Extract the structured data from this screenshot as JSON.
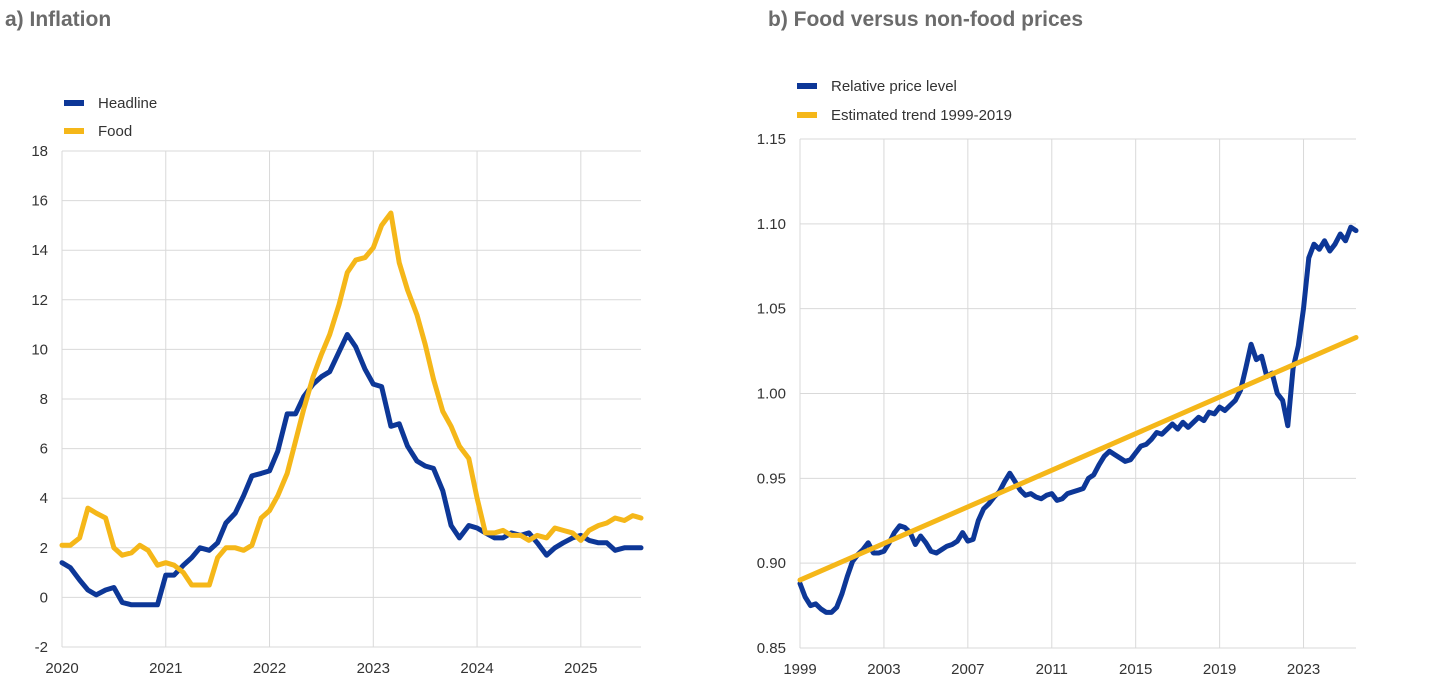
{
  "chart_data": [
    {
      "type": "line",
      "title": "a) Inflation",
      "xlabel": "",
      "ylabel": "",
      "x_ticks": [
        "2020",
        "2021",
        "2022",
        "2023",
        "2024",
        "2025"
      ],
      "x_range": [
        2020.0,
        2025.58
      ],
      "y_ticks": [
        "18",
        "16",
        "14",
        "12",
        "10",
        "8",
        "6",
        "4",
        "2",
        "0",
        "-2"
      ],
      "ylim": [
        -2,
        18
      ],
      "grid": true,
      "legend_position": "top-left",
      "series": [
        {
          "name": "Headline",
          "color": "#0d3797",
          "x": [
            2020.0,
            2020.08,
            2020.17,
            2020.25,
            2020.33,
            2020.42,
            2020.5,
            2020.58,
            2020.67,
            2020.75,
            2020.83,
            2020.92,
            2021.0,
            2021.08,
            2021.17,
            2021.25,
            2021.33,
            2021.42,
            2021.5,
            2021.58,
            2021.67,
            2021.75,
            2021.83,
            2021.92,
            2022.0,
            2022.08,
            2022.17,
            2022.25,
            2022.33,
            2022.42,
            2022.5,
            2022.58,
            2022.67,
            2022.75,
            2022.83,
            2022.92,
            2023.0,
            2023.08,
            2023.17,
            2023.25,
            2023.33,
            2023.42,
            2023.5,
            2023.58,
            2023.67,
            2023.75,
            2023.83,
            2023.92,
            2024.0,
            2024.08,
            2024.17,
            2024.25,
            2024.33,
            2024.42,
            2024.5,
            2024.58,
            2024.67,
            2024.75,
            2024.83,
            2024.92,
            2025.0,
            2025.08,
            2025.17,
            2025.25,
            2025.33,
            2025.42,
            2025.5,
            2025.58
          ],
          "values": [
            1.4,
            1.2,
            0.7,
            0.3,
            0.1,
            0.3,
            0.4,
            -0.2,
            -0.3,
            -0.3,
            -0.3,
            -0.3,
            0.9,
            0.9,
            1.3,
            1.6,
            2.0,
            1.9,
            2.2,
            3.0,
            3.4,
            4.1,
            4.9,
            5.0,
            5.1,
            5.9,
            7.4,
            7.4,
            8.1,
            8.6,
            8.9,
            9.1,
            9.9,
            10.6,
            10.1,
            9.2,
            8.6,
            8.5,
            6.9,
            7.0,
            6.1,
            5.5,
            5.3,
            5.2,
            4.3,
            2.9,
            2.4,
            2.9,
            2.8,
            2.6,
            2.4,
            2.4,
            2.6,
            2.5,
            2.6,
            2.2,
            1.7,
            2.0,
            2.2,
            2.4,
            2.5,
            2.3,
            2.2,
            2.2,
            1.9,
            2.0,
            2.0,
            2.0
          ]
        },
        {
          "name": "Food",
          "color": "#f5b719",
          "x": [
            2020.0,
            2020.08,
            2020.17,
            2020.25,
            2020.33,
            2020.42,
            2020.5,
            2020.58,
            2020.67,
            2020.75,
            2020.83,
            2020.92,
            2021.0,
            2021.08,
            2021.17,
            2021.25,
            2021.33,
            2021.42,
            2021.5,
            2021.58,
            2021.67,
            2021.75,
            2021.83,
            2021.92,
            2022.0,
            2022.08,
            2022.17,
            2022.25,
            2022.33,
            2022.42,
            2022.5,
            2022.58,
            2022.67,
            2022.75,
            2022.83,
            2022.92,
            2023.0,
            2023.08,
            2023.17,
            2023.25,
            2023.33,
            2023.42,
            2023.5,
            2023.58,
            2023.67,
            2023.75,
            2023.83,
            2023.92,
            2024.0,
            2024.08,
            2024.17,
            2024.25,
            2024.33,
            2024.42,
            2024.5,
            2024.58,
            2024.67,
            2024.75,
            2024.83,
            2024.92,
            2025.0,
            2025.08,
            2025.17,
            2025.25,
            2025.33,
            2025.42,
            2025.5,
            2025.58
          ],
          "values": [
            2.1,
            2.1,
            2.4,
            3.6,
            3.4,
            3.2,
            2.0,
            1.7,
            1.8,
            2.1,
            1.9,
            1.3,
            1.4,
            1.3,
            1.0,
            0.5,
            0.5,
            0.5,
            1.6,
            2.0,
            2.0,
            1.9,
            2.1,
            3.2,
            3.5,
            4.1,
            5.0,
            6.3,
            7.6,
            8.9,
            9.8,
            10.6,
            11.8,
            13.1,
            13.6,
            13.7,
            14.1,
            15.0,
            15.5,
            13.5,
            12.4,
            11.4,
            10.2,
            8.8,
            7.5,
            6.9,
            6.1,
            5.6,
            4.0,
            2.6,
            2.6,
            2.7,
            2.5,
            2.5,
            2.3,
            2.5,
            2.4,
            2.8,
            2.7,
            2.6,
            2.3,
            2.7,
            2.9,
            3.0,
            3.2,
            3.1,
            3.3,
            3.2
          ]
        }
      ]
    },
    {
      "type": "line",
      "title": "b) Food versus non-food prices",
      "xlabel": "",
      "ylabel": "",
      "x_ticks": [
        "1999",
        "2003",
        "2007",
        "2011",
        "2015",
        "2019",
        "2023"
      ],
      "x_range": [
        1999.0,
        2025.5
      ],
      "y_ticks": [
        "1.15",
        "1.10",
        "1.05",
        "1.00",
        "0.95",
        "0.90",
        "0.85"
      ],
      "ylim": [
        0.85,
        1.15
      ],
      "grid": true,
      "legend_position": "top-left",
      "series": [
        {
          "name": "Relative price level",
          "color": "#0d3797",
          "x": [
            1999.0,
            1999.25,
            1999.5,
            1999.75,
            2000.0,
            2000.25,
            2000.5,
            2000.75,
            2001.0,
            2001.25,
            2001.5,
            2001.75,
            2002.0,
            2002.25,
            2002.5,
            2002.75,
            2003.0,
            2003.25,
            2003.5,
            2003.75,
            2004.0,
            2004.25,
            2004.5,
            2004.75,
            2005.0,
            2005.25,
            2005.5,
            2005.75,
            2006.0,
            2006.25,
            2006.5,
            2006.75,
            2007.0,
            2007.25,
            2007.5,
            2007.75,
            2008.0,
            2008.25,
            2008.5,
            2008.75,
            2009.0,
            2009.25,
            2009.5,
            2009.75,
            2010.0,
            2010.25,
            2010.5,
            2010.75,
            2011.0,
            2011.25,
            2011.5,
            2011.75,
            2012.0,
            2012.25,
            2012.5,
            2012.75,
            2013.0,
            2013.25,
            2013.5,
            2013.75,
            2014.0,
            2014.25,
            2014.5,
            2014.75,
            2015.0,
            2015.25,
            2015.5,
            2015.75,
            2016.0,
            2016.25,
            2016.5,
            2016.75,
            2017.0,
            2017.25,
            2017.5,
            2017.75,
            2018.0,
            2018.25,
            2018.5,
            2018.75,
            2019.0,
            2019.25,
            2019.5,
            2019.75,
            2020.0,
            2020.25,
            2020.5,
            2020.75,
            2021.0,
            2021.25,
            2021.5,
            2021.75,
            2022.0,
            2022.25,
            2022.5,
            2022.75,
            2023.0,
            2023.25,
            2023.5,
            2023.75,
            2024.0,
            2024.25,
            2024.5,
            2024.75,
            2025.0,
            2025.25,
            2025.5
          ],
          "values": [
            0.888,
            0.88,
            0.875,
            0.876,
            0.873,
            0.871,
            0.871,
            0.874,
            0.882,
            0.892,
            0.901,
            0.905,
            0.908,
            0.912,
            0.906,
            0.906,
            0.907,
            0.912,
            0.918,
            0.922,
            0.921,
            0.918,
            0.911,
            0.916,
            0.912,
            0.907,
            0.906,
            0.908,
            0.91,
            0.911,
            0.913,
            0.918,
            0.913,
            0.914,
            0.925,
            0.932,
            0.935,
            0.939,
            0.942,
            0.948,
            0.953,
            0.948,
            0.943,
            0.94,
            0.941,
            0.939,
            0.938,
            0.94,
            0.941,
            0.937,
            0.938,
            0.941,
            0.942,
            0.943,
            0.944,
            0.95,
            0.952,
            0.958,
            0.963,
            0.966,
            0.964,
            0.962,
            0.96,
            0.961,
            0.965,
            0.969,
            0.97,
            0.973,
            0.977,
            0.976,
            0.979,
            0.982,
            0.979,
            0.983,
            0.98,
            0.983,
            0.986,
            0.984,
            0.989,
            0.988,
            0.992,
            0.99,
            0.993,
            0.996,
            1.002,
            1.015,
            1.029,
            1.02,
            1.022,
            1.01,
            1.012,
            1.0,
            0.996,
            0.981,
            1.015,
            1.028,
            1.05,
            1.08,
            1.088,
            1.085,
            1.09,
            1.084,
            1.088,
            1.094,
            1.09,
            1.098,
            1.096
          ]
        },
        {
          "name": "Estimated trend 1999-2019",
          "color": "#f5b719",
          "x": [
            1999.0,
            2025.5
          ],
          "values": [
            0.89,
            1.033
          ]
        }
      ]
    }
  ]
}
